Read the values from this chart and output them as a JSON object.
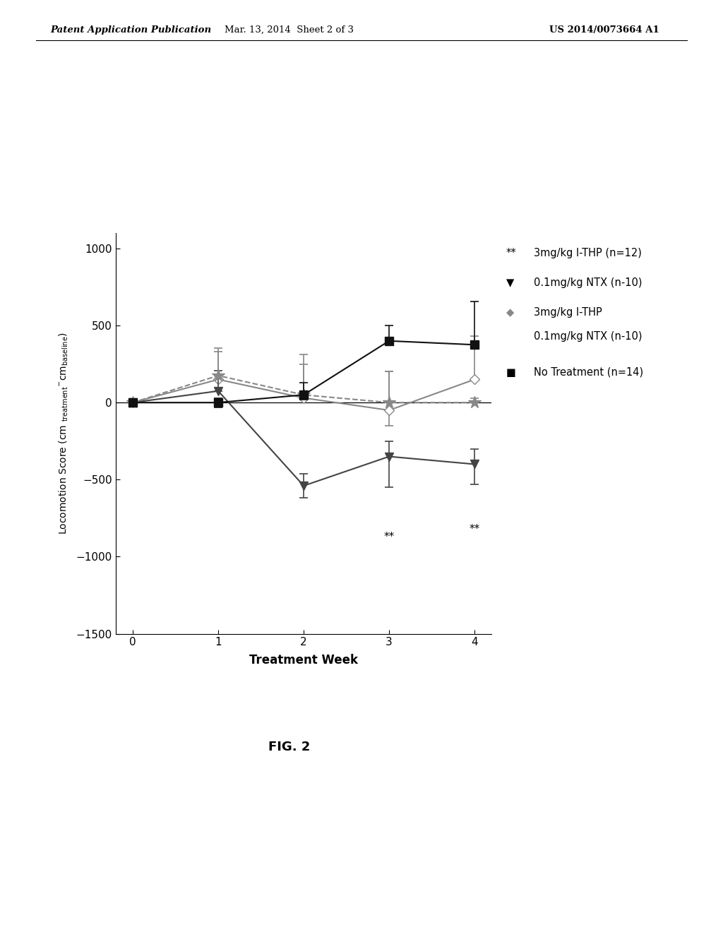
{
  "weeks": [
    0,
    1,
    2,
    3,
    4
  ],
  "lthp": [
    0,
    175,
    50,
    0,
    0
  ],
  "lthp_err_up": [
    0,
    180,
    200,
    200,
    30
  ],
  "lthp_err_dn": [
    0,
    0,
    0,
    0,
    0
  ],
  "ntx": [
    0,
    75,
    -540,
    -350,
    -400
  ],
  "ntx_err_up": [
    0,
    130,
    80,
    100,
    100
  ],
  "ntx_err_dn": [
    0,
    0,
    80,
    200,
    130
  ],
  "combo": [
    0,
    150,
    30,
    -50,
    150
  ],
  "combo_err_up": [
    0,
    180,
    280,
    250,
    280
  ],
  "combo_err_dn": [
    0,
    0,
    0,
    100,
    0
  ],
  "notreat": [
    0,
    0,
    50,
    400,
    375
  ],
  "notreat_err_up": [
    0,
    30,
    80,
    100,
    280
  ],
  "notreat_err_dn": [
    0,
    30,
    30,
    30,
    0
  ],
  "xlabel": "Treatment Week",
  "ylim": [
    -1500,
    1100
  ],
  "yticks": [
    -1500,
    -1000,
    -500,
    0,
    500,
    1000
  ],
  "xticks": [
    0,
    1,
    2,
    3,
    4
  ],
  "color_gray": "#888888",
  "color_dark": "#444444",
  "color_black": "#111111",
  "fig_caption": "FIG. 2",
  "header_left": "Patent Application Publication",
  "header_mid": "Mar. 13, 2014  Sheet 2 of 3",
  "header_right": "US 2014/0073664 A1",
  "legend_lthp": "3mg/kg l-THP (n=12)",
  "legend_ntx": "0.1mg/kg NTX (n-10)",
  "legend_combo_1": "3mg/kg l-THP",
  "legend_combo_2": "0.1mg/kg NTX (n-10)",
  "legend_notreat": "No Treatment (n=14)",
  "star_week3_y": -870,
  "star_week4_y": -820
}
